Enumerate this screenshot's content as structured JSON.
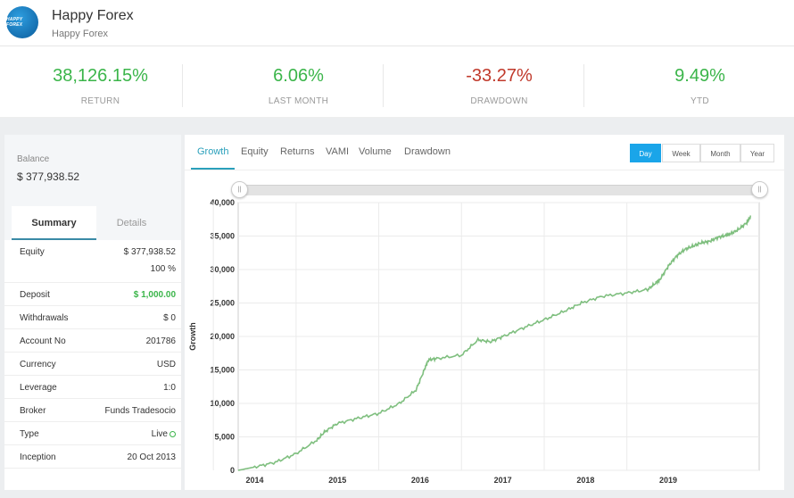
{
  "header": {
    "title": "Happy Forex",
    "subtitle": "Happy Forex",
    "logo_text": "HAPPY FOREX"
  },
  "stats": [
    {
      "value": "38,126.15%",
      "label": "RETURN",
      "color": "#3bb54a"
    },
    {
      "value": "6.06%",
      "label": "LAST MONTH",
      "color": "#3bb54a"
    },
    {
      "value": "-33.27%",
      "label": "DRAWDOWN",
      "color": "#c0392b"
    },
    {
      "value": "9.49%",
      "label": "YTD",
      "color": "#3bb54a"
    }
  ],
  "balance": {
    "label": "Balance",
    "value": "$ 377,938.52"
  },
  "subtabs": [
    "Summary",
    "Details"
  ],
  "summary": {
    "equity_label": "Equity",
    "equity_value": "$ 377,938.52",
    "equity_pct": "100 %",
    "deposit_label": "Deposit",
    "deposit_value": "$ 1,000.00",
    "withdrawals_label": "Withdrawals",
    "withdrawals_value": "$ 0",
    "account_label": "Account No",
    "account_value": "201786",
    "currency_label": "Currency",
    "currency_value": "USD",
    "leverage_label": "Leverage",
    "leverage_value": "1:0",
    "broker_label": "Broker",
    "broker_value": "Funds Tradesocio",
    "type_label": "Type",
    "type_value": "Live",
    "inception_label": "Inception",
    "inception_value": "20 Oct 2013"
  },
  "tabs": [
    "Growth",
    "Equity",
    "Returns",
    "VAMI",
    "Volume",
    "Drawdown"
  ],
  "periods": [
    "Day",
    "Week",
    "Month",
    "Year"
  ],
  "accent": "#1aa5e9",
  "chart_data": {
    "type": "line",
    "ylabel": "Growth",
    "ylim": [
      0,
      40000
    ],
    "yticks": [
      0,
      5000,
      10000,
      15000,
      20000,
      25000,
      30000,
      35000,
      40000
    ],
    "ytick_labels": [
      "0",
      "5,000",
      "10,000",
      "15,000",
      "20,000",
      "25,000",
      "30,000",
      "35,000",
      "40,000"
    ],
    "xticks": [
      "2014",
      "2015",
      "2016",
      "2017",
      "2018",
      "2019"
    ],
    "xlim": [
      2013.8,
      2020.1
    ],
    "grid": true,
    "series": [
      {
        "color": "#7fbf7f",
        "x": [
          2013.8,
          2014.0,
          2014.25,
          2014.5,
          2014.75,
          2014.85,
          2015.0,
          2015.25,
          2015.5,
          2015.75,
          2015.95,
          2016.05,
          2016.1,
          2016.2,
          2016.5,
          2016.7,
          2016.85,
          2017.0,
          2017.25,
          2017.5,
          2017.75,
          2017.95,
          2018.2,
          2018.5,
          2018.75,
          2018.85,
          2018.9,
          2019.0,
          2019.1,
          2019.2,
          2019.3,
          2019.4,
          2019.5,
          2019.6,
          2019.7,
          2019.75,
          2019.85,
          2019.95,
          2020.0
        ],
        "y": [
          0,
          500,
          1200,
          2500,
          4500,
          5800,
          7000,
          7800,
          8500,
          10000,
          12000,
          15000,
          16500,
          16700,
          17200,
          19500,
          19200,
          20000,
          21300,
          22500,
          23800,
          25000,
          26000,
          26500,
          27000,
          28000,
          28500,
          30500,
          32000,
          33000,
          33500,
          34000,
          34200,
          34800,
          35100,
          35300,
          36000,
          37000,
          38000
        ]
      }
    ]
  }
}
